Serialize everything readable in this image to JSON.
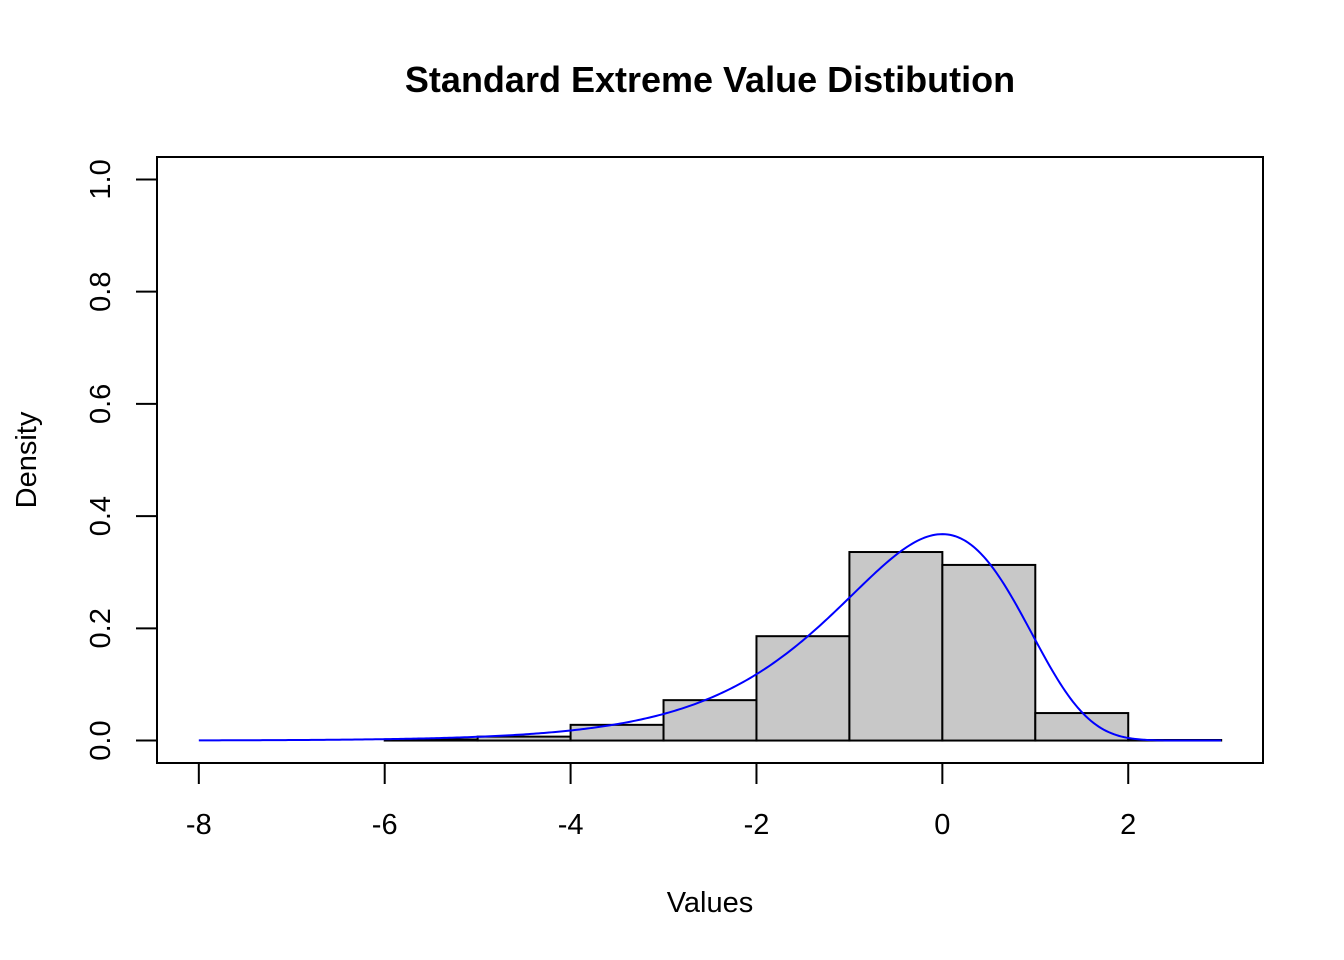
{
  "chart_data": {
    "type": "bar",
    "title": "Standard Extreme Value Distibution",
    "xlabel": "Values",
    "ylabel": "Density",
    "xlim": [
      -8.45,
      3.45
    ],
    "ylim": [
      -0.04,
      1.04
    ],
    "x_ticks": [
      -8,
      -6,
      -4,
      -2,
      0,
      2
    ],
    "x_tick_labels": [
      "-8",
      "-6",
      "-4",
      "-2",
      "0",
      "2"
    ],
    "y_ticks": [
      0.0,
      0.2,
      0.4,
      0.6,
      0.8,
      1.0
    ],
    "y_tick_labels": [
      "0.0",
      "0.2",
      "0.4",
      "0.6",
      "0.8",
      "1.0"
    ],
    "grid": false,
    "bins": [
      {
        "x0": -8,
        "x1": -7,
        "density": 0.0
      },
      {
        "x0": -7,
        "x1": -6,
        "density": 0.0
      },
      {
        "x0": -6,
        "x1": -5,
        "density": 0.002
      },
      {
        "x0": -5,
        "x1": -4,
        "density": 0.007
      },
      {
        "x0": -4,
        "x1": -3,
        "density": 0.028
      },
      {
        "x0": -3,
        "x1": -2,
        "density": 0.072
      },
      {
        "x0": -2,
        "x1": -1,
        "density": 0.186
      },
      {
        "x0": -1,
        "x1": 0,
        "density": 0.336
      },
      {
        "x0": 0,
        "x1": 1,
        "density": 0.313
      },
      {
        "x0": 1,
        "x1": 2,
        "density": 0.049
      },
      {
        "x0": 2,
        "x1": 3,
        "density": 0.001
      }
    ],
    "density_curve": {
      "distribution": "extreme value (Gumbel, minimum), location 0, scale 1",
      "x_range": [
        -8,
        3
      ],
      "color": "#0000ff"
    },
    "bar_fill": "#c8c8c8",
    "bar_stroke": "#000000"
  }
}
